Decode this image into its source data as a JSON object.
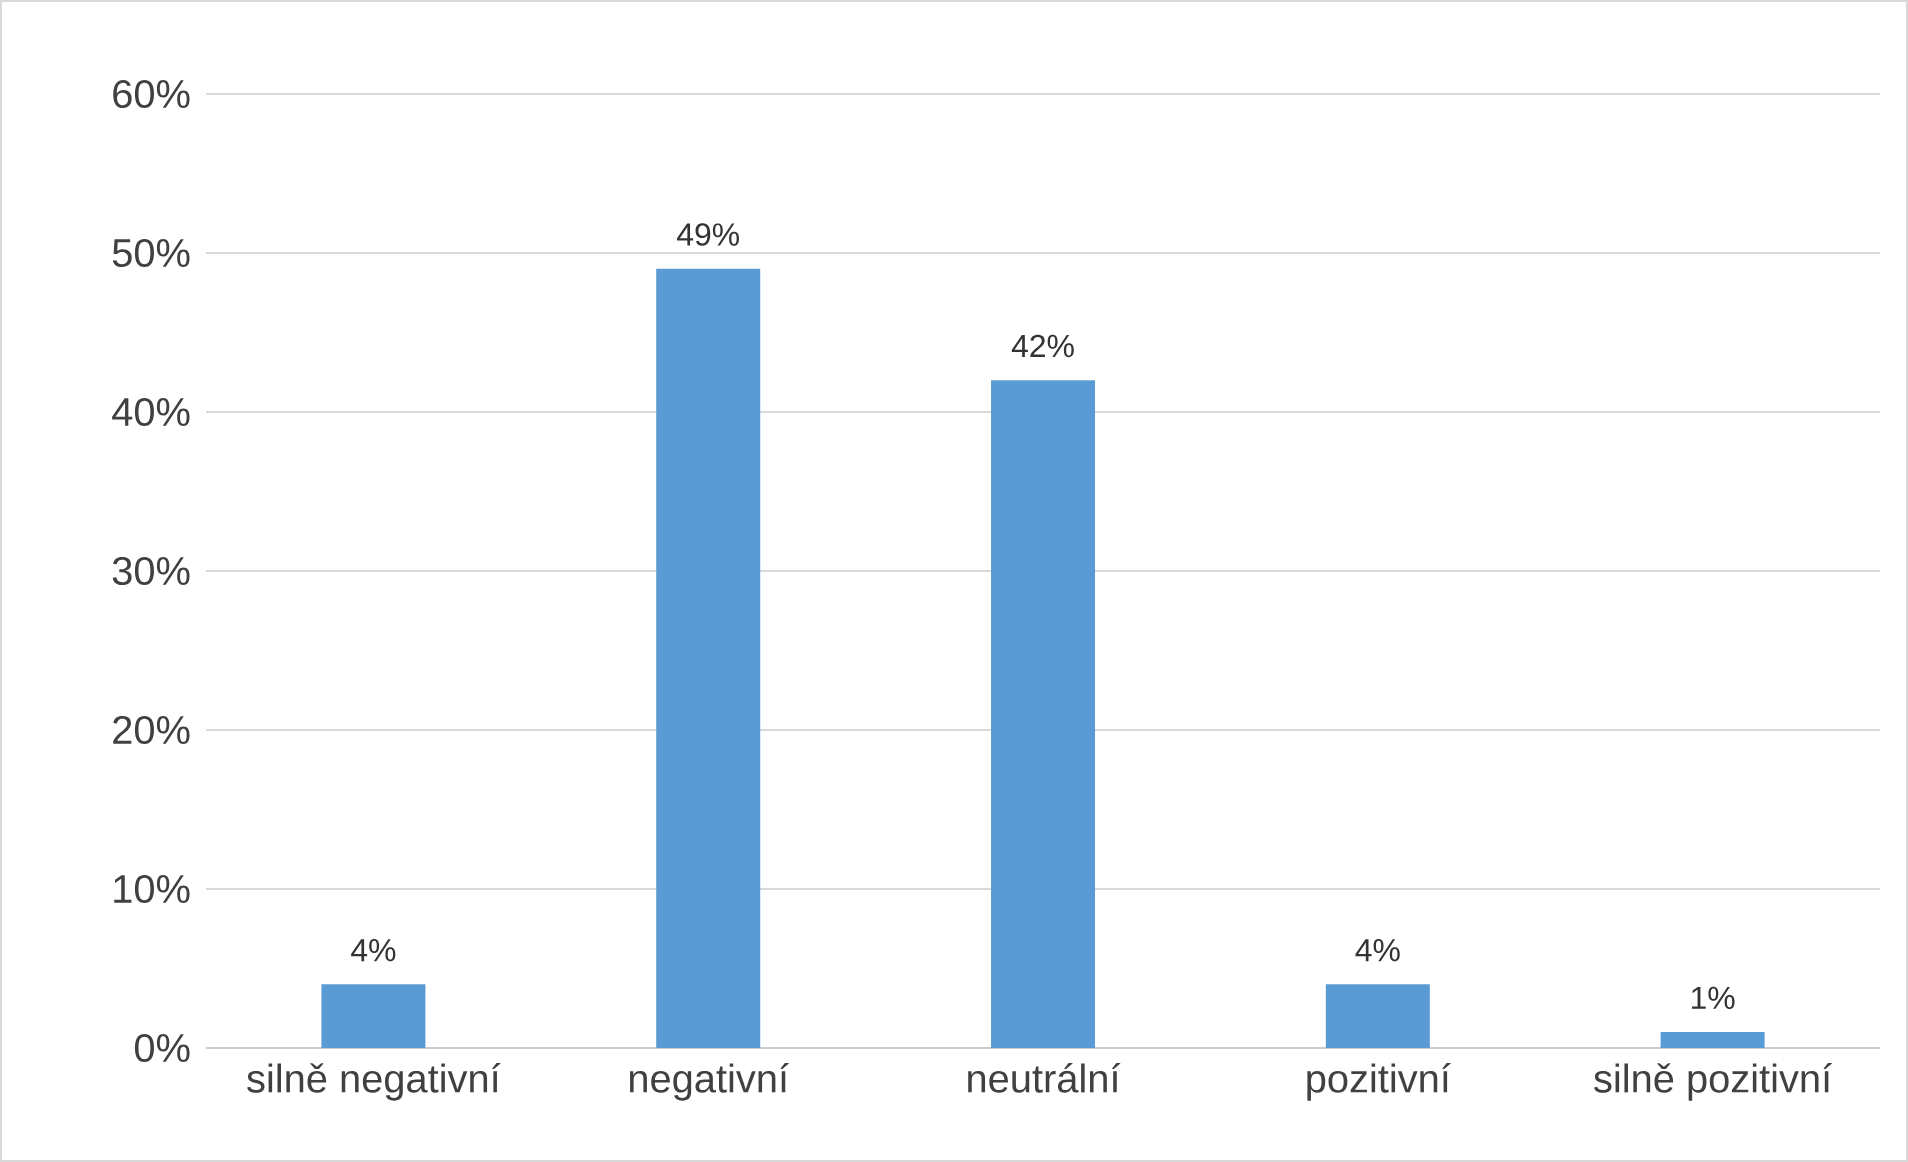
{
  "chart_data": {
    "type": "bar",
    "categories": [
      "silně negativní",
      "negativní",
      "neutrální",
      "pozitivní",
      "silně pozitivní"
    ],
    "values": [
      4,
      49,
      42,
      4,
      1
    ],
    "value_labels": [
      "4%",
      "49%",
      "42%",
      "4%",
      "1%"
    ],
    "color": "#5b9bd5",
    "ylim": [
      0,
      60
    ],
    "yticks": [
      {
        "value": 0,
        "label": "0%"
      },
      {
        "value": 10,
        "label": "10%"
      },
      {
        "value": 20,
        "label": "20%"
      },
      {
        "value": 30,
        "label": "30%"
      },
      {
        "value": 40,
        "label": "40%"
      },
      {
        "value": 50,
        "label": "50%"
      },
      {
        "value": 60,
        "label": "60%"
      }
    ],
    "grid": "y"
  }
}
